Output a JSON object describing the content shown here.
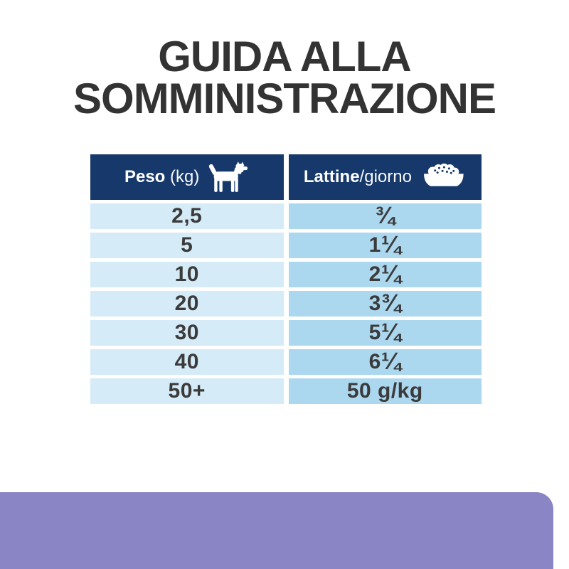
{
  "page": {
    "title_line1": "GUIDA ALLA",
    "title_line2": "SOMMINISTRAZIONE"
  },
  "table": {
    "header": {
      "weight_label_bold": "Peso",
      "weight_label_unit": " (kg)",
      "weight_icon": "dog-icon",
      "cans_label_bold": "Lattine",
      "cans_label_rest": "/giorno",
      "cans_icon": "food-bowl-icon"
    },
    "rows": [
      {
        "peso": "2,5",
        "lattine": "¾"
      },
      {
        "peso": "5",
        "lattine": "1 ¼"
      },
      {
        "peso": "10",
        "lattine": "2 ¼"
      },
      {
        "peso": "20",
        "lattine": "3 ¾"
      },
      {
        "peso": "30",
        "lattine": "5 ¼"
      },
      {
        "peso": "40",
        "lattine": "6 ¼"
      },
      {
        "peso": "50+",
        "lattine": "50 g/kg"
      }
    ]
  },
  "chart_data": {
    "type": "table",
    "title": "GUIDA ALLA SOMMINISTRAZIONE",
    "columns": [
      "Peso (kg)",
      "Lattine/giorno"
    ],
    "rows": [
      [
        "2,5",
        "¾"
      ],
      [
        "5",
        "1 ¼"
      ],
      [
        "10",
        "2 ¼"
      ],
      [
        "20",
        "3 ¾"
      ],
      [
        "30",
        "5 ¼"
      ],
      [
        "40",
        "6 ¼"
      ],
      [
        "50+",
        "50 g/kg"
      ]
    ]
  },
  "colors": {
    "header_navy": "#16386b",
    "row_left_blue": "#d5ebf8",
    "row_right_blue": "#abd7ef",
    "accent_purple": "#8a85c5",
    "title_text": "#333333",
    "cell_text": "#3b3b3b"
  }
}
